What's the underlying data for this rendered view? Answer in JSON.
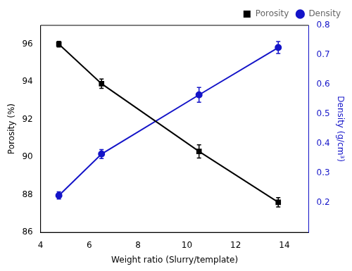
{
  "chart_data": {
    "type": "line",
    "xlabel": "Weight ratio (Slurry/template)",
    "ylabel": "Porosity (%)",
    "y2label": "Density (g/cm³)",
    "x": [
      4.75,
      6.5,
      10.5,
      13.75
    ],
    "series": [
      {
        "name": "Porosity",
        "color": "#000000",
        "marker": "square",
        "values": [
          96.0,
          93.9,
          90.3,
          87.6
        ],
        "errors": [
          0.15,
          0.25,
          0.35,
          0.25
        ]
      },
      {
        "name": "Density",
        "color": "#1414c8",
        "marker": "circle",
        "axis": "y2",
        "values": [
          0.225,
          0.365,
          0.565,
          0.725
        ],
        "errors": [
          0.012,
          0.015,
          0.025,
          0.02
        ]
      }
    ],
    "xlim": [
      4,
      15
    ],
    "xticks": [
      4,
      6,
      8,
      10,
      12,
      14
    ],
    "ylim": [
      86,
      97
    ],
    "yticks": [
      86,
      88,
      90,
      92,
      94,
      96
    ],
    "y2lim": [
      0.1,
      0.8
    ],
    "y2ticks": [
      0.2,
      0.3,
      0.4,
      0.5,
      0.6,
      0.7,
      0.8
    ],
    "grid": false,
    "legend": "upper right"
  }
}
